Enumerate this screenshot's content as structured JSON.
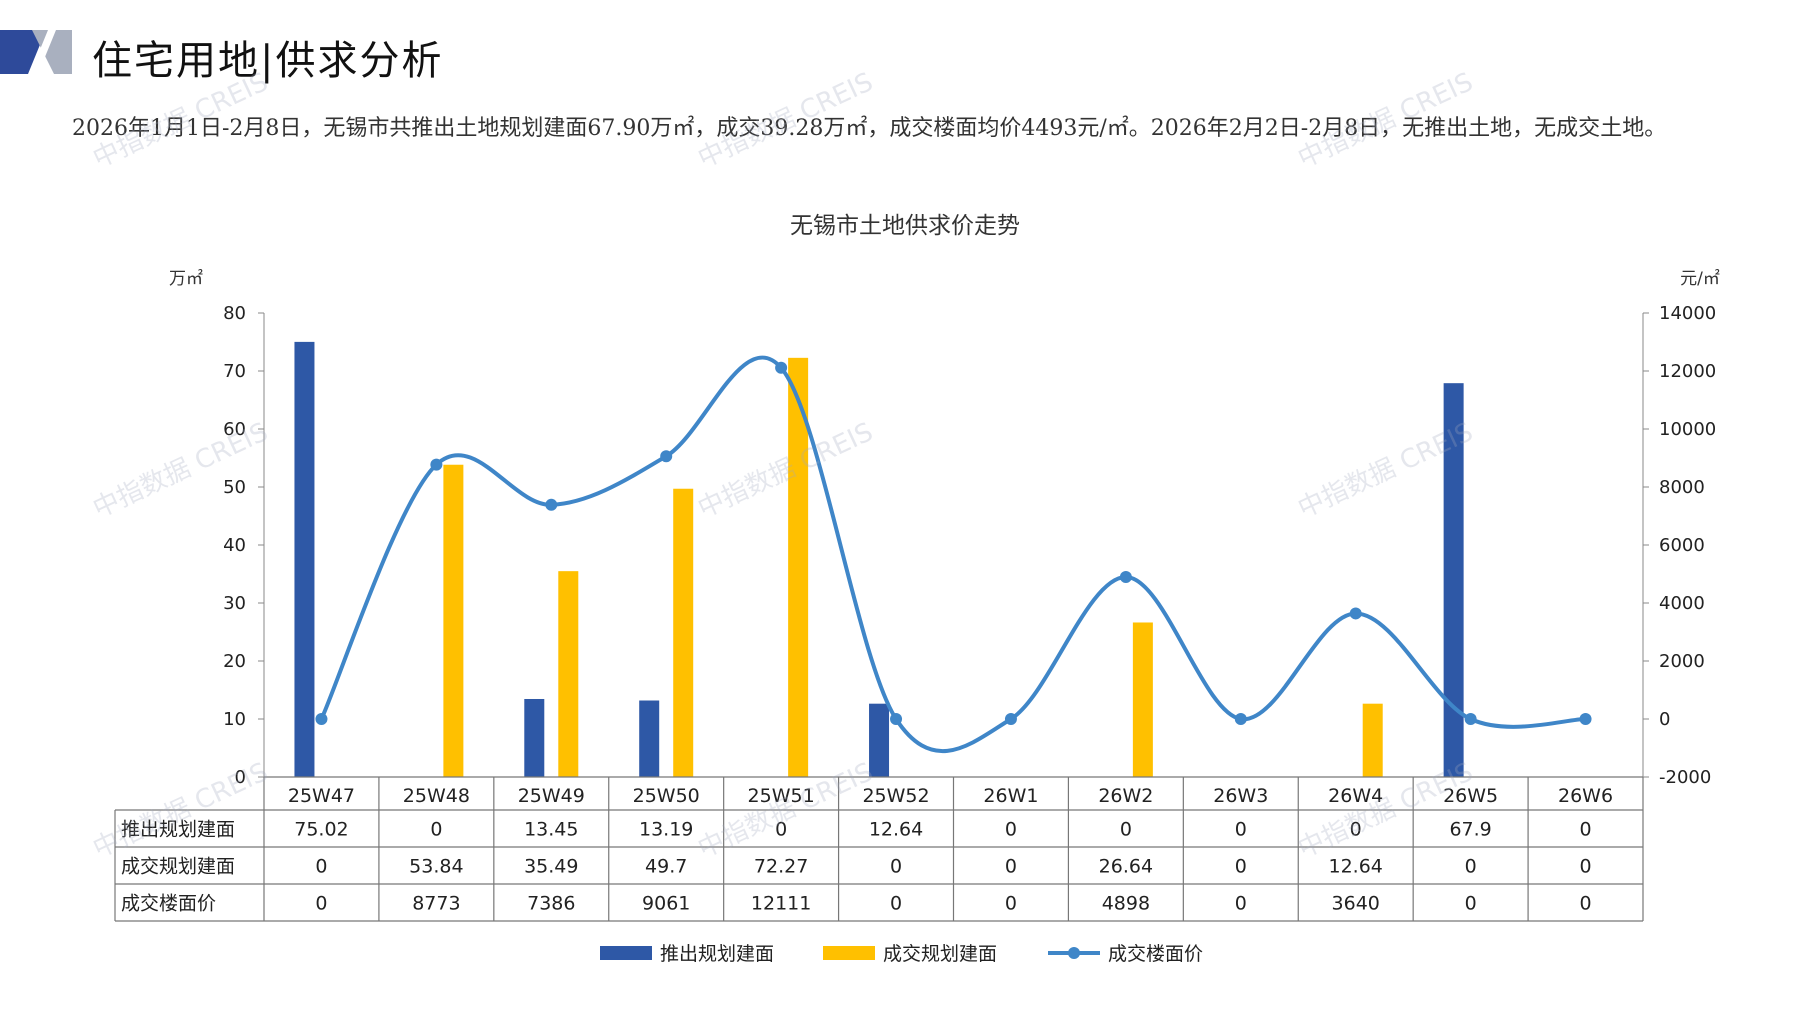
{
  "header": {
    "title": "住宅用地|供求分析",
    "summary": "2026年1月1日-2月8日，无锡市共推出土地规划建面67.90万㎡，成交39.28万㎡，成交楼面均价4493元/㎡。2026年2月2日-2月8日，无推出土地，无成交土地。"
  },
  "colors": {
    "supply": "#2E58A6",
    "transaction": "#FFC000",
    "price": "#3F86C8",
    "logo_dark": "#2E4A9A",
    "logo_gray": "#A9B0BF"
  },
  "watermark": "中指数据 CREIS",
  "chart_data": {
    "type": "bar",
    "title": "无锡市土地供求价走势",
    "ylabel_left": "万㎡",
    "ylabel_right": "元/㎡",
    "ylim_left": [
      0,
      80
    ],
    "ylim_right": [
      -2000,
      14000
    ],
    "yticks_left": [
      0,
      10,
      20,
      30,
      40,
      50,
      60,
      70,
      80
    ],
    "yticks_right": [
      -2000,
      0,
      2000,
      4000,
      6000,
      8000,
      10000,
      12000,
      14000
    ],
    "categories": [
      "25W47",
      "25W48",
      "25W49",
      "25W50",
      "25W51",
      "25W52",
      "26W1",
      "26W2",
      "26W3",
      "26W4",
      "26W5",
      "26W6"
    ],
    "series": [
      {
        "name": "推出规划建面",
        "type": "bar",
        "axis": "left",
        "color": "#2E58A6",
        "values": [
          75.02,
          0,
          13.45,
          13.19,
          0,
          12.64,
          0,
          0,
          0,
          0,
          67.9,
          0
        ],
        "labels": [
          "75.02",
          "0",
          "13.45",
          "13.19",
          "0",
          "12.64",
          "0",
          "0",
          "0",
          "0",
          "67.9",
          "0"
        ]
      },
      {
        "name": "成交规划建面",
        "type": "bar",
        "axis": "left",
        "color": "#FFC000",
        "values": [
          0,
          53.84,
          35.49,
          49.7,
          72.27,
          0,
          0,
          26.64,
          0,
          12.64,
          0,
          0
        ],
        "labels": [
          "0",
          "53.84",
          "35.49",
          "49.7",
          "72.27",
          "0",
          "0",
          "26.64",
          "0",
          "12.64",
          "0",
          "0"
        ]
      },
      {
        "name": "成交楼面价",
        "type": "line",
        "axis": "right",
        "color": "#3F86C8",
        "values": [
          0,
          8773,
          7386,
          9061,
          12111,
          0,
          0,
          4898,
          0,
          3640,
          0,
          0
        ],
        "labels": [
          "0",
          "8773",
          "7386",
          "9061",
          "12111",
          "0",
          "0",
          "4898",
          "0",
          "3640",
          "0",
          "0"
        ]
      }
    ],
    "legend_position": "bottom",
    "grid": false,
    "data_table": true
  }
}
